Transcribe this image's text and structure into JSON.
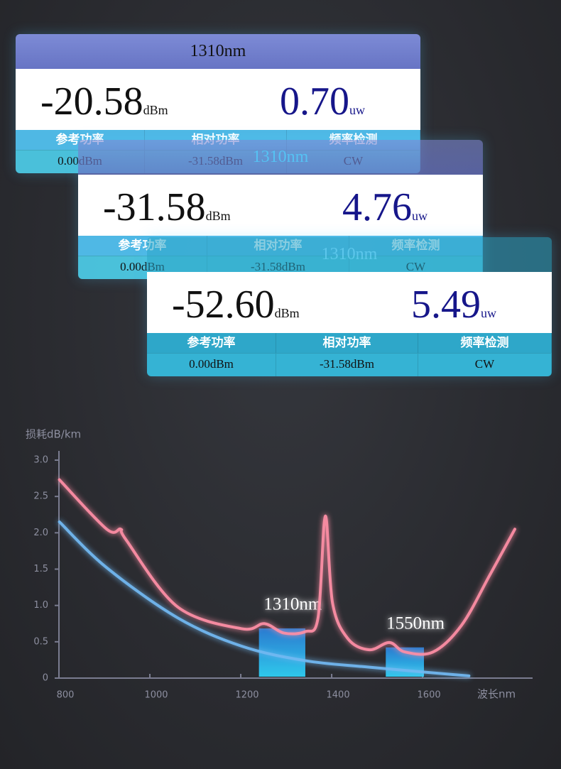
{
  "cards": [
    {
      "title": "1310nm",
      "reading": {
        "value": "-20.58",
        "unit": "dBm"
      },
      "power": {
        "value": "0.70",
        "unit": "uw"
      },
      "headers": [
        "参考功率",
        "相对功率",
        "频率检测"
      ],
      "row": [
        "0.00dBm",
        "-31.58dBm",
        "CW"
      ]
    },
    {
      "title": "1310nm",
      "reading": {
        "value": "-31.58",
        "unit": "dBm"
      },
      "power": {
        "value": "4.76",
        "unit": "uw"
      },
      "headers": [
        "参考功率",
        "相对功率",
        "频率检测"
      ],
      "row": [
        "0.00dBm",
        "-31.58dBm",
        "CW"
      ]
    },
    {
      "title": "1310nm",
      "reading": {
        "value": "-52.60",
        "unit": "dBm"
      },
      "power": {
        "value": "5.49",
        "unit": "uw"
      },
      "headers": [
        "参考功率",
        "相对功率",
        "频率检测"
      ],
      "row": [
        "0.00dBm",
        "-31.58dBm",
        "CW"
      ]
    }
  ],
  "chart_data": {
    "type": "line",
    "y_label": "损耗dB/km",
    "x_label": "波长nm",
    "xlim": [
      800,
      1842
    ],
    "ylim": [
      0,
      3
    ],
    "xticks": [
      800,
      1000,
      1200,
      1400,
      1600
    ],
    "yticks": [
      0,
      0.5,
      {
        "value": 1,
        "label": "1.0"
      },
      1.5,
      {
        "value": 2,
        "label": "2.0"
      },
      2.5,
      {
        "value": 3,
        "label": "3.0"
      }
    ],
    "series": [
      {
        "color": "#ff8fa6",
        "x": [
          801,
          905,
          936,
          948,
          1061,
          1202,
          1252,
          1295,
          1342,
          1370,
          1386,
          1402,
          1436,
          1483,
          1527,
          1561,
          1623,
          1686,
          1748,
          1803
        ],
        "values": [
          2.73,
          2.05,
          2.05,
          1.9,
          0.98,
          0.68,
          0.75,
          0.62,
          0.64,
          0.83,
          2.23,
          1.03,
          0.54,
          0.39,
          0.49,
          0.36,
          0.36,
          0.73,
          1.42,
          2.05
        ]
      },
      {
        "color": "#72b9f2",
        "x": [
          801,
          905,
          1061,
          1202,
          1342,
          1483,
          1702
        ],
        "values": [
          2.15,
          1.52,
          0.83,
          0.44,
          0.24,
          0.15,
          0.03
        ]
      }
    ],
    "bands": [
      {
        "label": "1310nm",
        "range": [
          1240,
          1342
        ]
      },
      {
        "label": "1550nm",
        "range": [
          1519,
          1603
        ]
      }
    ]
  }
}
